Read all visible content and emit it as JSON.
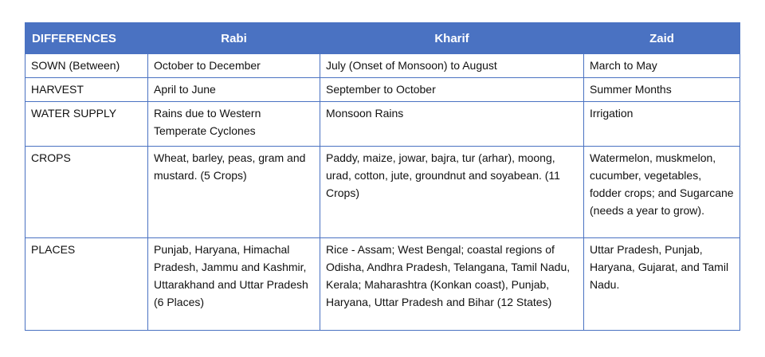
{
  "table": {
    "header": [
      "DIFFERENCES",
      "Rabi",
      "Kharif",
      "Zaid"
    ],
    "rows": [
      [
        "SOWN (Between)",
        "October to December",
        "July (Onset of Monsoon) to August",
        "March to May"
      ],
      [
        "HARVEST",
        "April to June",
        "September to October",
        "Summer Months"
      ],
      [
        "WATER SUPPLY",
        "Rains due to Western Temperate Cyclones",
        "Monsoon Rains",
        "Irrigation"
      ],
      [
        "CROPS",
        "Wheat, barley, peas, gram and mustard. (5 Crops)",
        "Paddy, maize, jowar, bajra, tur (arhar), moong, urad, cotton, jute, groundnut and soyabean. (11 Crops)",
        "Watermelon, muskmelon, cucumber, vegetables, fodder crops; and Sugarcane (needs a year to grow)."
      ],
      [
        "PLACES",
        "Punjab, Haryana, Himachal Pradesh, Jammu and Kashmir, Uttarakhand and Uttar Pradesh (6 Places)",
        "Rice - Assam; West Bengal; coastal regions of Odisha, Andhra Pradesh, Telangana, Tamil Nadu, Kerala; Maharashtra (Konkan coast), Punjab, Haryana, Uttar Pradesh and Bihar (12 States)",
        "Uttar Pradesh, Punjab, Haryana, Gujarat, and Tamil Nadu."
      ]
    ]
  }
}
